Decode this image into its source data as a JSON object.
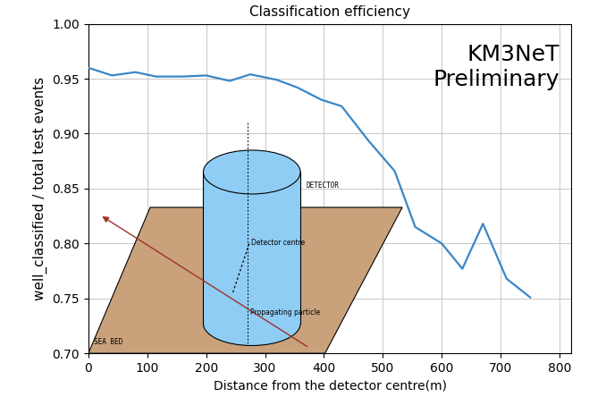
{
  "chart_data": {
    "type": "line",
    "title": "Classification efficiency",
    "x_label": "Distance from the detector centre(m)",
    "y_label": "well_classified / total test events",
    "x": [
      0,
      40,
      80,
      115,
      160,
      200,
      240,
      275,
      320,
      355,
      395,
      430,
      475,
      520,
      555,
      600,
      635,
      670,
      710,
      750
    ],
    "series": [
      {
        "name": "Classification efficiency",
        "color": "#3b86c6",
        "line_style": "solid",
        "values": [
          0.96,
          0.953,
          0.956,
          0.952,
          0.952,
          0.953,
          0.948,
          0.954,
          0.949,
          0.942,
          0.931,
          0.925,
          0.894,
          0.866,
          0.815,
          0.8,
          0.777,
          0.818,
          0.768,
          0.751
        ]
      }
    ],
    "xlim": [
      0,
      820
    ],
    "xticks": [
      0,
      100,
      200,
      300,
      400,
      500,
      600,
      700,
      800
    ],
    "ylim": [
      0.7,
      1.0
    ],
    "yticks": [
      {
        "value": 0.7,
        "label": "0.70"
      },
      {
        "value": 0.75,
        "label": "0.75"
      },
      {
        "value": 0.8,
        "label": "0.80"
      },
      {
        "value": 0.85,
        "label": "0.85"
      },
      {
        "value": 0.9,
        "label": "0.90"
      },
      {
        "value": 0.95,
        "label": "0.95"
      },
      {
        "value": 1.0,
        "label": "1.00"
      }
    ],
    "grid": true,
    "annotations": [
      {
        "text": "KM3NeT\nPreliminary"
      },
      {
        "text": "DETECTOR"
      },
      {
        "text": "Detector centre"
      },
      {
        "text": "Propagating particle"
      },
      {
        "text": "SEA BED"
      }
    ]
  }
}
